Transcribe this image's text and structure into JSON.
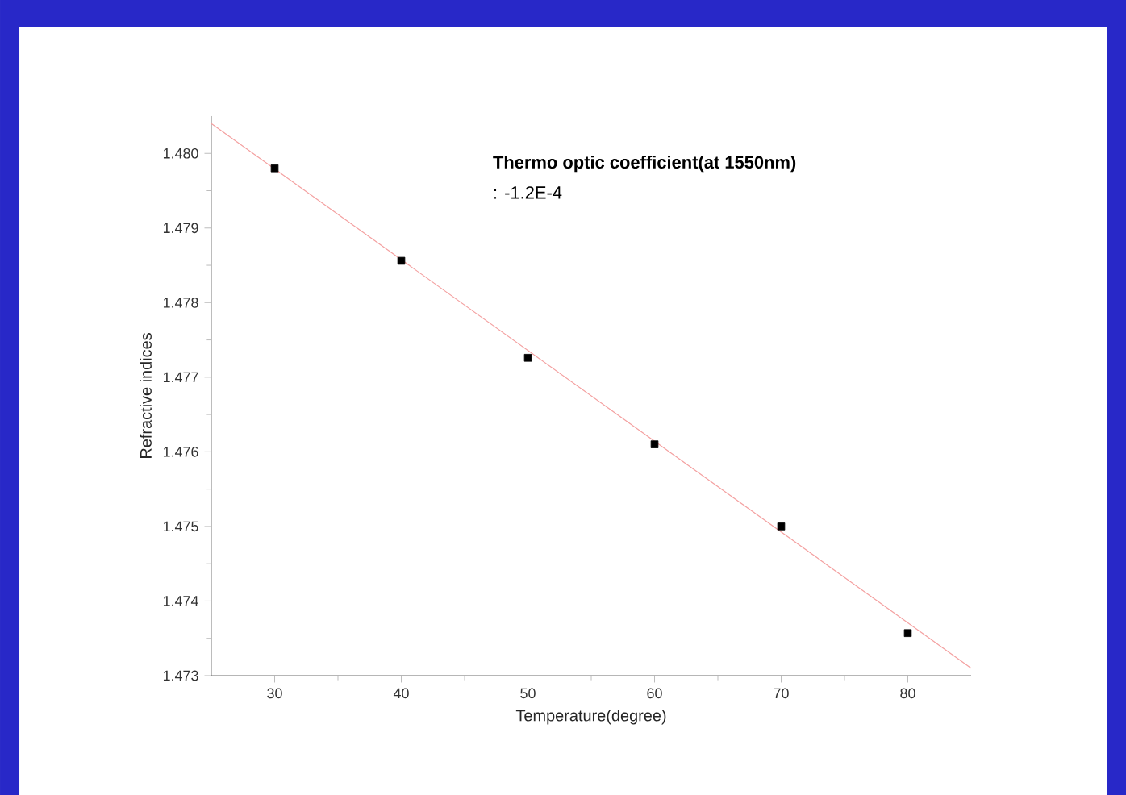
{
  "chart_data": {
    "type": "scatter",
    "xlabel": "Temperature(degree)",
    "ylabel": "Refractive indices",
    "annotations": [
      "Thermo optic coefficient(at 1550nm)",
      ": -1.2E-4"
    ],
    "x": [
      30,
      40,
      50,
      60,
      70,
      80
    ],
    "series": [
      {
        "color": "#000000",
        "marker": "square",
        "values": [
          1.4798,
          1.47856,
          1.47726,
          1.4761,
          1.475,
          1.47357
        ]
      },
      {
        "type": "line",
        "color": "#f4a0a0",
        "marker": "none",
        "line_style": "solid",
        "x": [
          25,
          85
        ],
        "values": [
          1.4804,
          1.4731
        ]
      }
    ],
    "xlim": [
      25,
      85
    ],
    "ylim": [
      1.473,
      1.4805
    ],
    "xticks": [
      30,
      40,
      50,
      60,
      70,
      80
    ],
    "yticks": [
      {
        "value": 1.473,
        "label": "1.473"
      },
      {
        "value": 1.474,
        "label": "1.474"
      },
      {
        "value": 1.475,
        "label": "1.475"
      },
      {
        "value": 1.476,
        "label": "1.476"
      },
      {
        "value": 1.477,
        "label": "1.477"
      },
      {
        "value": 1.478,
        "label": "1.478"
      },
      {
        "value": 1.479,
        "label": "1.479"
      },
      {
        "value": 1.48,
        "label": "1.480"
      }
    ],
    "grid": false
  }
}
